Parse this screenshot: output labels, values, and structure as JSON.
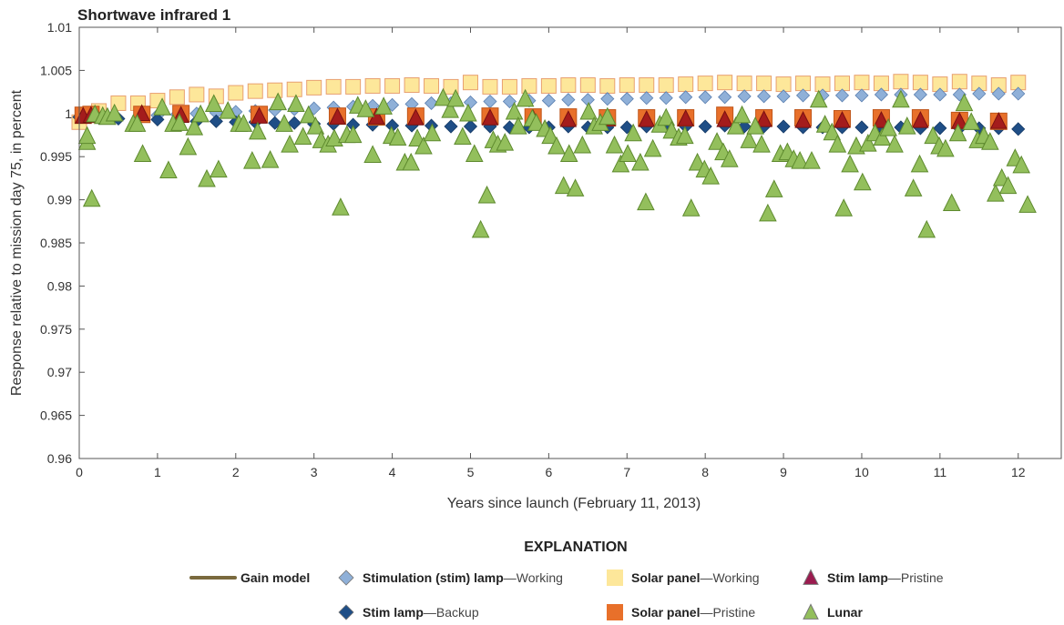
{
  "chart_data": {
    "type": "scatter",
    "title": "Shortwave infrared 1",
    "xlabel": "Years since launch (February 11, 2013)",
    "ylabel": "Response relative to mission day 75, in percent",
    "xlim": [
      0,
      12.55
    ],
    "ylim": [
      0.96,
      1.01
    ],
    "xticks": [
      "0",
      "1",
      "2",
      "3",
      "4",
      "5",
      "6",
      "7",
      "8",
      "9",
      "10",
      "11",
      "12"
    ],
    "yticks": [
      "0.96",
      "0.965",
      "0.97",
      "0.975",
      "0.98",
      "0.985",
      "0.99",
      "0.995",
      "1",
      "1.005",
      "1.01"
    ],
    "grid": false,
    "legend": {
      "title": "EXPLANATION",
      "placement": "bottom",
      "items": [
        {
          "bold": "Gain model",
          "normal": "",
          "marker": "line",
          "color": "#7a6a3e"
        },
        {
          "bold": "Stimulation (stim) lamp",
          "normal": "—Working",
          "marker": "diamond",
          "color": "#8fb0d8"
        },
        {
          "bold": "Solar panel",
          "normal": "—Working",
          "marker": "square",
          "color": "#fde79a"
        },
        {
          "bold": "Stim lamp",
          "normal": "—Pristine",
          "marker": "triangle",
          "color": "#9b1b4f"
        },
        {
          "bold": "Stim lamp",
          "normal": "—Backup",
          "marker": "diamond",
          "color": "#1f4e86"
        },
        {
          "bold": "Solar panel",
          "normal": "—Pristine",
          "marker": "square",
          "color": "#e8702a"
        },
        {
          "bold": "Lunar",
          "normal": "",
          "marker": "triangle",
          "color": "#93bf5c"
        }
      ]
    },
    "series": [
      {
        "name": "Solar panel—Working",
        "marker": "square",
        "color": "#fde79a",
        "stroke": "#e8a070",
        "x_start": 0,
        "x_step": 0.25,
        "values": [
          0.999,
          1.0003,
          1.0012,
          1.0012,
          1.0015,
          1.0019,
          1.0022,
          1.002,
          1.0024,
          1.0026,
          1.0027,
          1.0028,
          1.003,
          1.0031,
          1.0031,
          1.0032,
          1.0032,
          1.0033,
          1.0032,
          1.0031,
          1.0036,
          1.0031,
          1.0031,
          1.0032,
          1.0032,
          1.0033,
          1.0033,
          1.0032,
          1.0033,
          1.0033,
          1.0033,
          1.0034,
          1.0035,
          1.0036,
          1.0035,
          1.0035,
          1.0034,
          1.0035,
          1.0034,
          1.0035,
          1.0036,
          1.0035,
          1.0037,
          1.0036,
          1.0034,
          1.0037,
          1.0035,
          1.0033,
          1.0036
        ]
      },
      {
        "name": "Stimulation (stim) lamp—Working",
        "marker": "diamond",
        "color": "#8fb0d8",
        "stroke": "#5a7fb0",
        "x_start": 1.0,
        "x_step": 0.25,
        "values": [
          0.9998,
          0.9999,
          1.0,
          1.0001,
          1.0002,
          1.0003,
          1.0004,
          1.0005,
          1.0006,
          1.0007,
          1.0008,
          1.0009,
          1.001,
          1.0011,
          1.0012,
          1.0012,
          1.0013,
          1.0014,
          1.0014,
          1.0015,
          1.0015,
          1.0016,
          1.0016,
          1.0017,
          1.0017,
          1.0018,
          1.0018,
          1.0019,
          1.0019,
          1.0019,
          1.002,
          1.002,
          1.002,
          1.0021,
          1.0021,
          1.0021,
          1.0021,
          1.0022,
          1.0022,
          1.0022,
          1.0022,
          1.0022,
          1.0023,
          1.0023,
          1.0023
        ]
      },
      {
        "name": "Stim lamp—Backup",
        "marker": "diamond",
        "color": "#1f4e86",
        "stroke": "#163a66",
        "x_start": 0,
        "x_step": 0.25,
        "values": [
          0.9996,
          0.9995,
          0.9994,
          0.9993,
          0.9993,
          0.9992,
          0.9991,
          0.9991,
          0.999,
          0.999,
          0.9989,
          0.9989,
          0.9988,
          0.9988,
          0.9987,
          0.9987,
          0.9986,
          0.9986,
          0.9986,
          0.9985,
          0.9985,
          0.9985,
          0.9984,
          0.9984,
          0.9984,
          0.9985,
          0.9984,
          0.9984,
          0.9984,
          0.9985,
          0.9985,
          0.9985,
          0.9985,
          0.9986,
          0.9985,
          0.9985,
          0.9985,
          0.9984,
          0.9984,
          0.9984,
          0.9984,
          0.9984,
          0.9984,
          0.9983,
          0.9983,
          0.9983,
          0.9983,
          0.9983,
          0.9982
        ]
      },
      {
        "name": "Solar panel—Pristine",
        "marker": "square",
        "color": "#e8702a",
        "stroke": "#c0561a",
        "points": [
          [
            0.05,
            0.9998
          ],
          [
            0.15,
            0.9999
          ],
          [
            0.8,
            0.9999
          ],
          [
            1.3,
            1.0
          ],
          [
            2.3,
            0.9999
          ],
          [
            3.3,
            0.9997
          ],
          [
            3.8,
            0.9996
          ],
          [
            4.3,
            0.9997
          ],
          [
            5.25,
            0.9997
          ],
          [
            5.8,
            0.9996
          ],
          [
            6.25,
            0.9996
          ],
          [
            6.75,
            0.9995
          ],
          [
            7.25,
            0.9995
          ],
          [
            7.75,
            0.9995
          ],
          [
            8.25,
            0.9998
          ],
          [
            8.75,
            0.9995
          ],
          [
            9.25,
            0.9995
          ],
          [
            9.75,
            0.9994
          ],
          [
            10.25,
            0.9995
          ],
          [
            10.75,
            0.9995
          ],
          [
            11.25,
            0.9992
          ],
          [
            11.75,
            0.9991
          ]
        ]
      },
      {
        "name": "Stim lamp—Pristine",
        "marker": "triangle",
        "color": "#9b1b4f",
        "fill2": "#a41c1c",
        "stroke": "#7a1010",
        "points": [
          [
            0.05,
            0.9996
          ],
          [
            0.15,
            0.9997
          ],
          [
            0.8,
            0.9999
          ],
          [
            1.3,
            0.9997
          ],
          [
            2.3,
            0.9996
          ],
          [
            3.3,
            0.9995
          ],
          [
            3.8,
            0.9995
          ],
          [
            4.3,
            0.9994
          ],
          [
            5.25,
            0.9994
          ],
          [
            5.8,
            0.9993
          ],
          [
            6.25,
            0.9992
          ],
          [
            6.75,
            0.9993
          ],
          [
            7.25,
            0.9992
          ],
          [
            7.75,
            0.9993
          ],
          [
            8.25,
            0.9992
          ],
          [
            8.75,
            0.9992
          ],
          [
            9.25,
            0.9991
          ],
          [
            9.75,
            0.9991
          ],
          [
            10.25,
            0.9991
          ],
          [
            10.75,
            0.9991
          ],
          [
            11.25,
            0.999
          ],
          [
            11.75,
            0.999
          ]
        ]
      },
      {
        "name": "Lunar",
        "marker": "triangle",
        "color": "#93bf5c",
        "stroke": "#5e8a2e",
        "points": [
          [
            0.1,
            0.9966
          ],
          [
            0.1,
            0.9973
          ],
          [
            0.16,
            0.99
          ],
          [
            0.2,
            0.9998
          ],
          [
            0.3,
            0.9996
          ],
          [
            0.36,
            0.9995
          ],
          [
            0.45,
            0.9999
          ],
          [
            0.69,
            0.9987
          ],
          [
            0.74,
            0.9987
          ],
          [
            0.81,
            0.9952
          ],
          [
            1.06,
            1.0006
          ],
          [
            1.14,
            0.9933
          ],
          [
            1.2,
            0.9987
          ],
          [
            1.28,
            0.9988
          ],
          [
            1.39,
            0.996
          ],
          [
            1.47,
            0.9983
          ],
          [
            1.55,
            0.9998
          ],
          [
            1.63,
            0.9923
          ],
          [
            1.72,
            1.001
          ],
          [
            1.78,
            0.9934
          ],
          [
            1.9,
            1.0002
          ],
          [
            2.04,
            0.9987
          ],
          [
            2.1,
            0.9987
          ],
          [
            2.21,
            0.9944
          ],
          [
            2.28,
            0.9978
          ],
          [
            2.44,
            0.9945
          ],
          [
            2.54,
            1.0012
          ],
          [
            2.62,
            0.9987
          ],
          [
            2.69,
            0.9963
          ],
          [
            2.77,
            1.001
          ],
          [
            2.86,
            0.9972
          ],
          [
            2.93,
            0.9997
          ],
          [
            3.02,
            0.9984
          ],
          [
            3.09,
            0.9968
          ],
          [
            3.18,
            0.9963
          ],
          [
            3.26,
            0.997
          ],
          [
            3.34,
            0.989
          ],
          [
            3.42,
            0.9974
          ],
          [
            3.5,
            0.9974
          ],
          [
            3.56,
            1.0008
          ],
          [
            3.66,
            1.0004
          ],
          [
            3.75,
            0.9951
          ],
          [
            3.89,
            1.0007
          ],
          [
            3.99,
            0.9973
          ],
          [
            4.07,
            0.9971
          ],
          [
            4.16,
            0.9942
          ],
          [
            4.24,
            0.9942
          ],
          [
            4.32,
            0.997
          ],
          [
            4.4,
            0.9961
          ],
          [
            4.51,
            0.9976
          ],
          [
            4.65,
            1.0017
          ],
          [
            4.74,
            1.0003
          ],
          [
            4.81,
            1.0016
          ],
          [
            4.9,
            0.9972
          ],
          [
            4.97,
            0.9999
          ],
          [
            5.05,
            0.9952
          ],
          [
            5.13,
            0.9864
          ],
          [
            5.21,
            0.9904
          ],
          [
            5.29,
            0.9968
          ],
          [
            5.35,
            0.9963
          ],
          [
            5.44,
            0.9965
          ],
          [
            5.56,
            1.0001
          ],
          [
            5.61,
            0.9984
          ],
          [
            5.7,
            1.0016
          ],
          [
            5.79,
            0.9993
          ],
          [
            5.84,
            0.9988
          ],
          [
            5.95,
            0.9981
          ],
          [
            6.02,
            0.9973
          ],
          [
            6.1,
            0.9961
          ],
          [
            6.19,
            0.9915
          ],
          [
            6.26,
            0.9952
          ],
          [
            6.34,
            0.9912
          ],
          [
            6.43,
            0.9962
          ],
          [
            6.51,
            1.0001
          ],
          [
            6.58,
            0.9984
          ],
          [
            6.66,
            0.9988
          ],
          [
            6.75,
            0.9995
          ],
          [
            6.84,
            0.9962
          ],
          [
            6.92,
            0.994
          ],
          [
            7.01,
            0.9952
          ],
          [
            7.08,
            0.9976
          ],
          [
            7.17,
            0.9942
          ],
          [
            7.24,
            0.9896
          ],
          [
            7.33,
            0.9958
          ],
          [
            7.42,
            0.9986
          ],
          [
            7.5,
            0.9994
          ],
          [
            7.57,
            0.9979
          ],
          [
            7.66,
            0.9971
          ],
          [
            7.74,
            0.9973
          ],
          [
            7.82,
            0.9889
          ],
          [
            7.9,
            0.9942
          ],
          [
            7.99,
            0.9934
          ],
          [
            8.07,
            0.9926
          ],
          [
            8.15,
            0.9966
          ],
          [
            8.23,
            0.9954
          ],
          [
            8.31,
            0.9946
          ],
          [
            8.39,
            0.9984
          ],
          [
            8.47,
            0.9997
          ],
          [
            8.56,
            0.9968
          ],
          [
            8.64,
            0.9984
          ],
          [
            8.72,
            0.9963
          ],
          [
            8.8,
            0.9883
          ],
          [
            8.88,
            0.9911
          ],
          [
            8.96,
            0.9952
          ],
          [
            9.05,
            0.9954
          ],
          [
            9.13,
            0.9946
          ],
          [
            9.21,
            0.9944
          ],
          [
            9.36,
            0.9944
          ],
          [
            9.45,
            1.0015
          ],
          [
            9.53,
            0.9986
          ],
          [
            9.62,
            0.9977
          ],
          [
            9.69,
            0.9963
          ],
          [
            9.77,
            0.9889
          ],
          [
            9.85,
            0.994
          ],
          [
            9.93,
            0.9961
          ],
          [
            10.01,
            0.9919
          ],
          [
            10.08,
            0.9964
          ],
          [
            10.17,
            0.9976
          ],
          [
            10.26,
            0.9971
          ],
          [
            10.34,
            0.9982
          ],
          [
            10.42,
            0.9963
          ],
          [
            10.5,
            1.0015
          ],
          [
            10.58,
            0.9984
          ],
          [
            10.66,
            0.9912
          ],
          [
            10.74,
            0.994
          ],
          [
            10.83,
            0.9864
          ],
          [
            10.91,
            0.9973
          ],
          [
            10.99,
            0.9961
          ],
          [
            11.07,
            0.9958
          ],
          [
            11.15,
            0.9895
          ],
          [
            11.23,
            0.9976
          ],
          [
            11.31,
            1.0011
          ],
          [
            11.4,
            0.9989
          ],
          [
            11.48,
            0.9968
          ],
          [
            11.56,
            0.9973
          ],
          [
            11.64,
            0.9966
          ],
          [
            11.71,
            0.9906
          ],
          [
            11.79,
            0.9924
          ],
          [
            11.87,
            0.9915
          ],
          [
            11.96,
            0.9947
          ],
          [
            12.04,
            0.9939
          ],
          [
            12.12,
            0.9893
          ]
        ]
      }
    ]
  }
}
